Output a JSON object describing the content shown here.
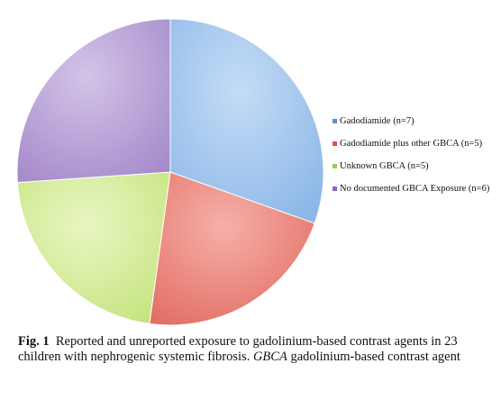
{
  "chart_data": {
    "type": "pie",
    "slices": [
      {
        "label": "Gadodiamide (n=7)",
        "value": 7,
        "color": "#a6c8ee"
      },
      {
        "label": "Gadodiamide plus other GBCA (n=5)",
        "value": 5,
        "color": "#ee8f86"
      },
      {
        "label": "Unknown GBCA (n=5)",
        "value": 5,
        "color": "#d6ed9e"
      },
      {
        "label": "No documented GBCA Exposure (n=6)",
        "value": 6,
        "color": "#b9a3d6"
      }
    ],
    "legend_placement": "right"
  },
  "legend_colors": [
    "#5a8fd0",
    "#d9544a",
    "#9fcf4a",
    "#8b6bbd"
  ],
  "caption": {
    "fig_label": "Fig. 1",
    "text_main": "Reported and unreported exposure to gadolinium-based contrast agents in 23 children with nephrogenic systemic fibrosis.",
    "abbr": "GBCA",
    "abbr_def": "gadolinium-based contrast agent"
  }
}
